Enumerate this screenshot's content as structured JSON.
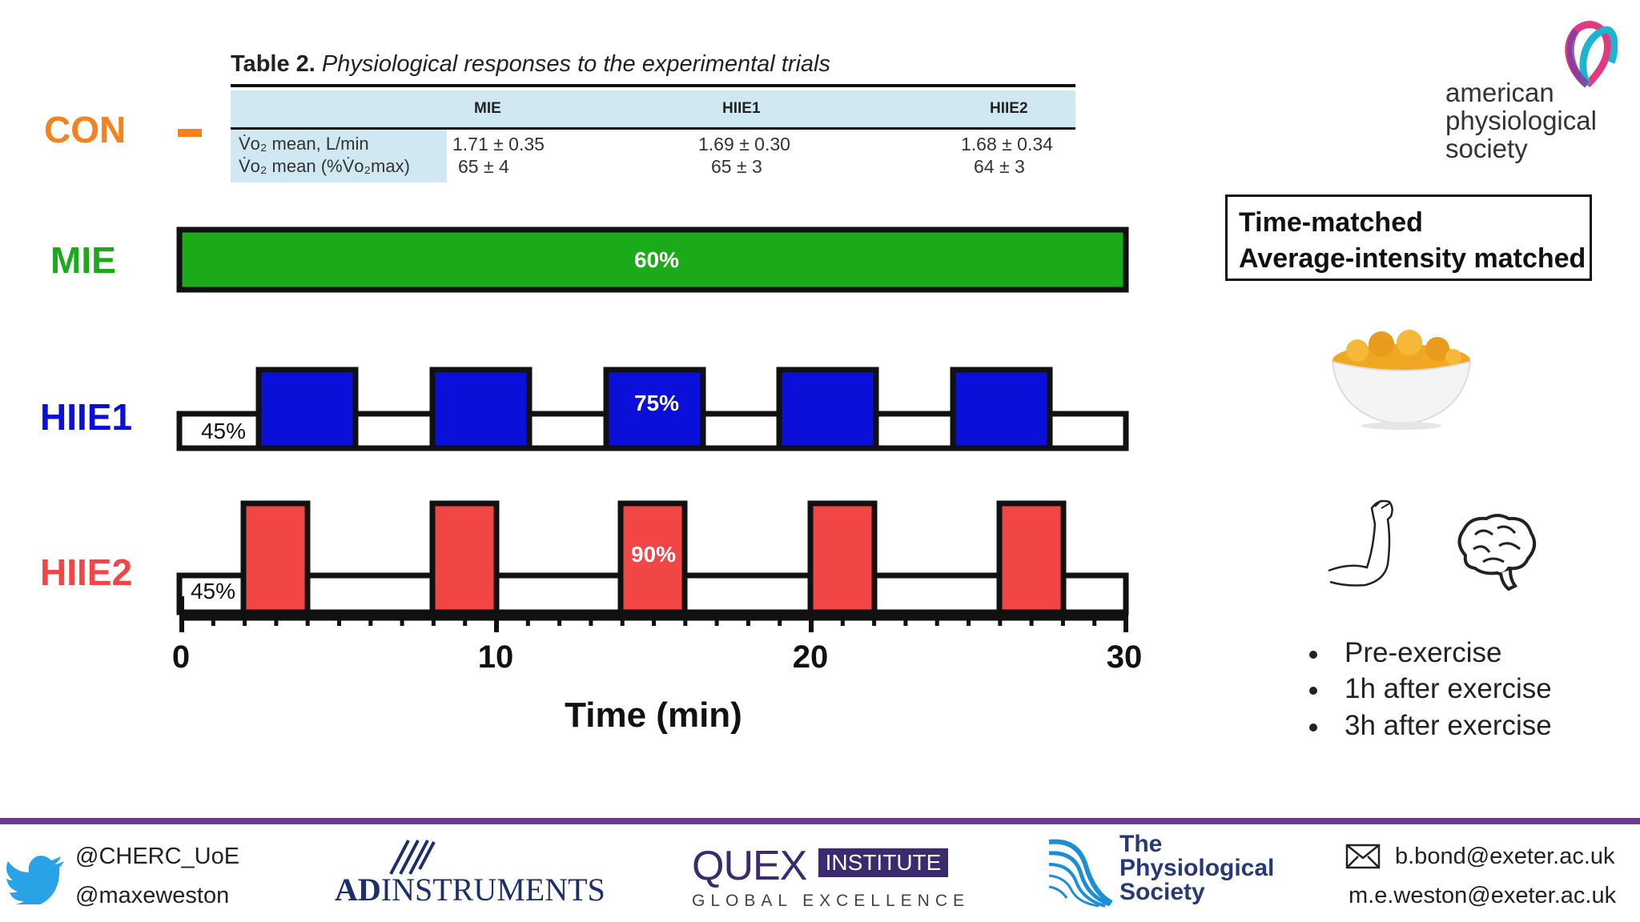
{
  "table": {
    "title_bold": "Table 2.",
    "title_italic": "Physiological responses to the experimental trials",
    "columns": [
      "MIE",
      "HIIE1",
      "HIIE2"
    ],
    "rows": [
      {
        "label": "V̇o₂ mean, L/min",
        "values": [
          "1.71 ± 0.35",
          "1.69 ± 0.30",
          "1.68 ± 0.34"
        ]
      },
      {
        "label": "V̇o₂ mean (%V̇o₂max)",
        "values": [
          "65 ± 4",
          "65 ± 3",
          "64 ± 3"
        ]
      }
    ]
  },
  "rows": {
    "con": {
      "label": "CON",
      "color": "#f5821f"
    },
    "mie": {
      "label": "MIE",
      "color": "#1aaa1a",
      "intensity": "60%"
    },
    "hiie1": {
      "label": "HIIE1",
      "color": "#0a10d8",
      "base": "45%",
      "peak": "75%"
    },
    "hiie2": {
      "label": "HIIE2",
      "color": "#f24545",
      "base": "45%",
      "peak": "90%"
    }
  },
  "axis": {
    "ticks": [
      "0",
      "10",
      "20",
      "30"
    ],
    "label": "Time (min)"
  },
  "info_box": {
    "line1": "Time-matched",
    "line2": "Average-intensity matched"
  },
  "timepoints": [
    "Pre-exercise",
    "1h after exercise",
    "3h after exercise"
  ],
  "aps": {
    "line1": "american",
    "line2": "physiological",
    "line3": "society"
  },
  "footer": {
    "twitter1": "@CHERC_UoE",
    "twitter2": "@maxeweston",
    "adi_ad": "AD",
    "adi_rest": "INSTRUMENTS",
    "quex": "QUEX",
    "quex_institute": "INSTITUTE",
    "quex_sub": "GLOBAL EXCELLENCE",
    "physoc1": "The",
    "physoc2": "Physiological",
    "physoc3": "Society",
    "email1": "b.bond@exeter.ac.uk",
    "email2": "m.e.weston@exeter.ac.uk"
  }
}
